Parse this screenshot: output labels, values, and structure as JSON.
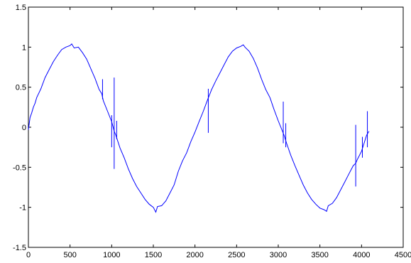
{
  "chart_data": {
    "type": "line",
    "title": "",
    "xlabel": "",
    "ylabel": "",
    "xlim": [
      0,
      4500
    ],
    "ylim": [
      -1.5,
      1.5
    ],
    "x_ticks": [
      0,
      500,
      1000,
      1500,
      2000,
      2500,
      3000,
      3500,
      4000,
      4500
    ],
    "y_ticks": [
      -1.5,
      -1,
      -0.5,
      0,
      0.5,
      1,
      1.5
    ],
    "x_tick_labels": [
      "0",
      "500",
      "1000",
      "1500",
      "2000",
      "2500",
      "3000",
      "3500",
      "4000",
      "4500"
    ],
    "y_tick_labels": [
      "-1.5",
      "-1",
      "-0.5",
      "0",
      "0.5",
      "1",
      "1.5"
    ],
    "grid": false,
    "legend": "none",
    "series": [
      {
        "color": "#0000ff",
        "x": [
          0,
          20,
          40,
          60,
          80,
          100,
          150,
          200,
          250,
          300,
          350,
          400,
          450,
          500,
          520,
          550,
          600,
          650,
          700,
          750,
          800,
          850,
          880,
          900,
          950,
          1000,
          1030,
          1050,
          1100,
          1150,
          1200,
          1250,
          1300,
          1350,
          1400,
          1450,
          1500,
          1530,
          1550,
          1600,
          1650,
          1700,
          1750,
          1800,
          1850,
          1900,
          1950,
          2000,
          2050,
          2100,
          2150,
          2200,
          2250,
          2300,
          2350,
          2400,
          2450,
          2500,
          2550,
          2580,
          2600,
          2650,
          2700,
          2750,
          2800,
          2850,
          2900,
          2950,
          3000,
          3050,
          3070,
          3100,
          3150,
          3200,
          3250,
          3300,
          3350,
          3400,
          3450,
          3500,
          3550,
          3580,
          3600,
          3650,
          3700,
          3750,
          3800,
          3850,
          3900,
          3930,
          3950,
          4000,
          4030,
          4060,
          4090
        ],
        "y": [
          -0.03,
          0.12,
          0.18,
          0.25,
          0.3,
          0.37,
          0.48,
          0.62,
          0.72,
          0.82,
          0.9,
          0.97,
          1.0,
          1.02,
          1.04,
          0.99,
          1.0,
          0.93,
          0.85,
          0.73,
          0.61,
          0.47,
          0.42,
          0.33,
          0.2,
          0.07,
          -0.05,
          -0.1,
          -0.26,
          -0.38,
          -0.52,
          -0.64,
          -0.74,
          -0.82,
          -0.9,
          -0.96,
          -1.0,
          -1.06,
          -0.99,
          -0.98,
          -0.92,
          -0.82,
          -0.72,
          -0.55,
          -0.42,
          -0.32,
          -0.18,
          -0.06,
          0.07,
          0.2,
          0.34,
          0.47,
          0.58,
          0.68,
          0.78,
          0.88,
          0.95,
          0.99,
          1.01,
          1.03,
          1.0,
          0.95,
          0.86,
          0.74,
          0.6,
          0.47,
          0.37,
          0.22,
          0.08,
          -0.05,
          -0.1,
          -0.2,
          -0.35,
          -0.48,
          -0.6,
          -0.72,
          -0.82,
          -0.9,
          -0.96,
          -1.01,
          -1.03,
          -1.05,
          -0.98,
          -0.95,
          -0.88,
          -0.78,
          -0.68,
          -0.58,
          -0.48,
          -0.45,
          -0.4,
          -0.3,
          -0.2,
          -0.1,
          -0.05
        ]
      }
    ],
    "spikes": [
      {
        "x": 890,
        "y1": 0.35,
        "y2": 0.6
      },
      {
        "x": 1000,
        "y1": -0.25,
        "y2": 0.15
      },
      {
        "x": 1030,
        "y1": -0.52,
        "y2": 0.62
      },
      {
        "x": 1060,
        "y1": -0.15,
        "y2": 0.08
      },
      {
        "x": 2160,
        "y1": -0.07,
        "y2": 0.48
      },
      {
        "x": 3060,
        "y1": -0.2,
        "y2": 0.32
      },
      {
        "x": 3090,
        "y1": -0.25,
        "y2": 0.05
      },
      {
        "x": 3930,
        "y1": -0.74,
        "y2": 0.03
      },
      {
        "x": 4010,
        "y1": -0.38,
        "y2": -0.12
      },
      {
        "x": 4070,
        "y1": -0.25,
        "y2": 0.2
      }
    ]
  }
}
